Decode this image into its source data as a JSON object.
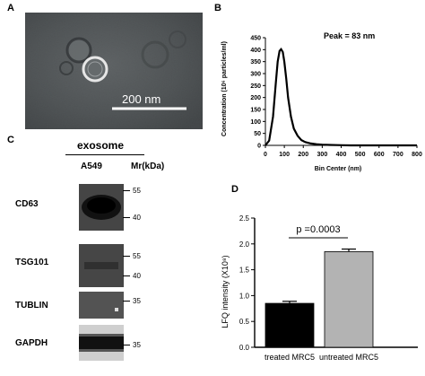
{
  "panels": {
    "a": {
      "letter": "A",
      "scale_bar_label": "200 nm"
    },
    "b": {
      "letter": "B",
      "annotation": "Peak = 83 nm"
    },
    "c": {
      "letter": "C",
      "header": "exosome",
      "lane_label": "A549",
      "mr_label": "Mr(kDa)",
      "blots": [
        {
          "label": "CD63",
          "markers": [
            "55",
            "40"
          ]
        },
        {
          "label": "TSG101",
          "markers": [
            "55",
            "40"
          ]
        },
        {
          "label": "TUBLIN",
          "markers": [
            "35"
          ]
        },
        {
          "label": "GAPDH",
          "markers": [
            "35"
          ]
        }
      ]
    },
    "d": {
      "letter": "D",
      "pvalue": "p =0.0003"
    }
  },
  "chart_data": [
    {
      "type": "line",
      "xlabel": "Bin Center (nm)",
      "ylabel": "Concentration (10⁶ particles/ml)",
      "xlim": [
        0,
        800
      ],
      "ylim": [
        0,
        450
      ],
      "x_ticks": [
        "0",
        "100",
        "200",
        "300",
        "400",
        "500",
        "600",
        "700",
        "800"
      ],
      "y_ticks": [
        "0",
        "50",
        "100",
        "150",
        "200",
        "250",
        "300",
        "350",
        "400",
        "450"
      ],
      "series": [
        {
          "x": [
            0,
            20,
            40,
            55,
            65,
            75,
            83,
            92,
            100,
            110,
            120,
            135,
            150,
            170,
            190,
            210,
            240,
            270,
            300,
            340,
            380,
            450,
            550,
            650,
            800
          ],
          "y": [
            0,
            20,
            120,
            260,
            350,
            395,
            402,
            390,
            350,
            280,
            200,
            120,
            70,
            40,
            22,
            14,
            8,
            5,
            3,
            2,
            1,
            0,
            0,
            0,
            0
          ]
        }
      ]
    },
    {
      "type": "bar",
      "categories": [
        "treated MRC5",
        "untreated MRC5"
      ],
      "values": [
        0.85,
        1.85
      ],
      "errors": [
        0.04,
        0.05
      ],
      "bar_colors": [
        "#000000",
        "#b3b3b3"
      ],
      "ylabel": "LFQ intensity (X10⁸)",
      "ylim": [
        0,
        2.5
      ],
      "y_ticks": [
        "0.0",
        "0.5",
        "1.0",
        "1.5",
        "2.0",
        "2.5"
      ]
    }
  ]
}
